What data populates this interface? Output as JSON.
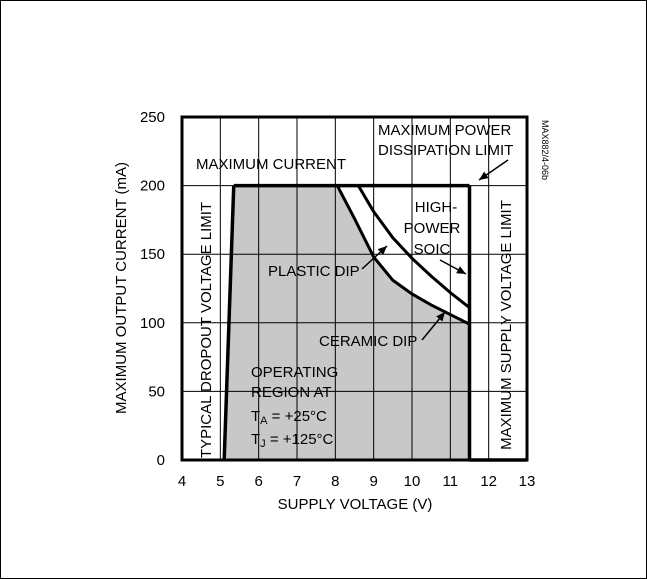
{
  "chart_data": {
    "type": "area",
    "xlabel": "SUPPLY VOLTAGE (V)",
    "ylabel": "MAXIMUM OUTPUT CURRENT (mA)",
    "xlim": [
      4,
      13
    ],
    "ylim": [
      0,
      250
    ],
    "x_ticks": [
      "4",
      "5",
      "6",
      "7",
      "8",
      "9",
      "10",
      "11",
      "12",
      "13"
    ],
    "y_ticks": [
      "0",
      "50",
      "100",
      "150",
      "200",
      "250"
    ],
    "grid": true,
    "operating_region_boundary": {
      "x": [
        5.1,
        5.35,
        8.05,
        8.5,
        9.0,
        9.5,
        10.0,
        10.5,
        11.0,
        11.5,
        11.5,
        5.1
      ],
      "y": [
        0,
        200,
        200,
        176,
        148,
        131,
        121,
        113,
        106,
        99,
        0,
        0
      ]
    },
    "series": [
      {
        "name": "PLASTIC DIP",
        "x": [
          8.05,
          8.5,
          9.0,
          9.5,
          10.0,
          10.5,
          11.0,
          11.5
        ],
        "y": [
          200,
          176,
          148,
          131,
          121,
          113,
          106,
          99
        ]
      },
      {
        "name": "HIGH-POWER SOIC",
        "x": [
          8.6,
          9.0,
          9.5,
          10.0,
          10.5,
          11.0,
          11.5
        ],
        "y": [
          200,
          181,
          162,
          147,
          134,
          122,
          111
        ]
      }
    ],
    "limits": {
      "max_current_mA": 200,
      "dropout_voltage_V": 5.1,
      "max_supply_voltage_V": 11.5
    },
    "annotations": {
      "max_current": "MAXIMUM CURRENT",
      "max_power_line1": "MAXIMUM POWER",
      "max_power_line2": "DISSIPATION LIMIT",
      "soic_line1": "HIGH-",
      "soic_line2": "POWER",
      "soic_line3": "SOIC",
      "plastic_dip": "PLASTIC DIP",
      "ceramic_dip": "CERAMIC DIP",
      "dropout_limit": "TYPICAL DROPOUT VOLTAGE LIMIT",
      "supply_limit": "MAXIMUM SUPPLY VOLTAGE LIMIT",
      "op_line1": "OPERATING",
      "op_line2": "REGION AT",
      "op_ta_main": "T",
      "op_ta_sub": "A",
      "op_ta_value": " = +25°C",
      "op_tj_main": "T",
      "op_tj_sub": "J",
      "op_tj_value": " = +125°C",
      "figure_id": "MAX882/4-06b"
    }
  }
}
